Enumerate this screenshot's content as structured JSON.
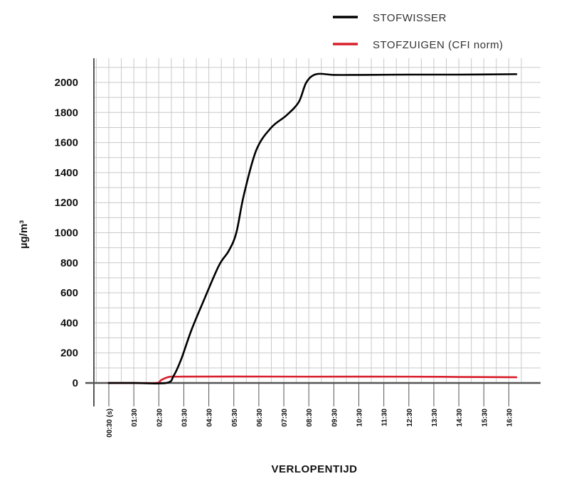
{
  "chart_data": {
    "type": "line",
    "title": "",
    "xlabel": "VERLOPENTIJD",
    "ylabel": "µg/m³",
    "categories": [
      "00:30 (s)",
      "01:30",
      "02:30",
      "03:30",
      "04:30",
      "05:30",
      "06:30",
      "07:30",
      "08:30",
      "09:30",
      "10:30",
      "11:30",
      "12:30",
      "13:30",
      "14:30",
      "15:30",
      "16:30"
    ],
    "yticks": [
      0,
      200,
      400,
      600,
      800,
      1000,
      1200,
      1400,
      1600,
      1800,
      2000
    ],
    "ylim": [
      0,
      2000
    ],
    "grid": true,
    "legend_position": "top-right",
    "series": [
      {
        "name": "STOFWISSER",
        "color": "#000000",
        "points": [
          [
            0,
            0
          ],
          [
            1,
            0
          ],
          [
            2.3,
            0
          ],
          [
            2.6,
            50
          ],
          [
            2.9,
            160
          ],
          [
            3.3,
            350
          ],
          [
            3.8,
            550
          ],
          [
            4.4,
            780
          ],
          [
            4.8,
            880
          ],
          [
            5.1,
            1000
          ],
          [
            5.4,
            1250
          ],
          [
            5.9,
            1550
          ],
          [
            6.5,
            1700
          ],
          [
            7.1,
            1780
          ],
          [
            7.6,
            1870
          ],
          [
            7.9,
            2000
          ],
          [
            8.3,
            2055
          ],
          [
            9,
            2050
          ],
          [
            10,
            2050
          ],
          [
            12,
            2052
          ],
          [
            14,
            2052
          ],
          [
            16.3,
            2055
          ]
        ]
      },
      {
        "name": "STOFZUIGEN (CFI norm)",
        "color": "#d81e2c",
        "points": [
          [
            0,
            0
          ],
          [
            1,
            0
          ],
          [
            1.9,
            0
          ],
          [
            2.1,
            20
          ],
          [
            2.4,
            40
          ],
          [
            2.8,
            42
          ],
          [
            5,
            43
          ],
          [
            8,
            42
          ],
          [
            12,
            42
          ],
          [
            14,
            40
          ],
          [
            16.3,
            38
          ]
        ]
      }
    ]
  }
}
